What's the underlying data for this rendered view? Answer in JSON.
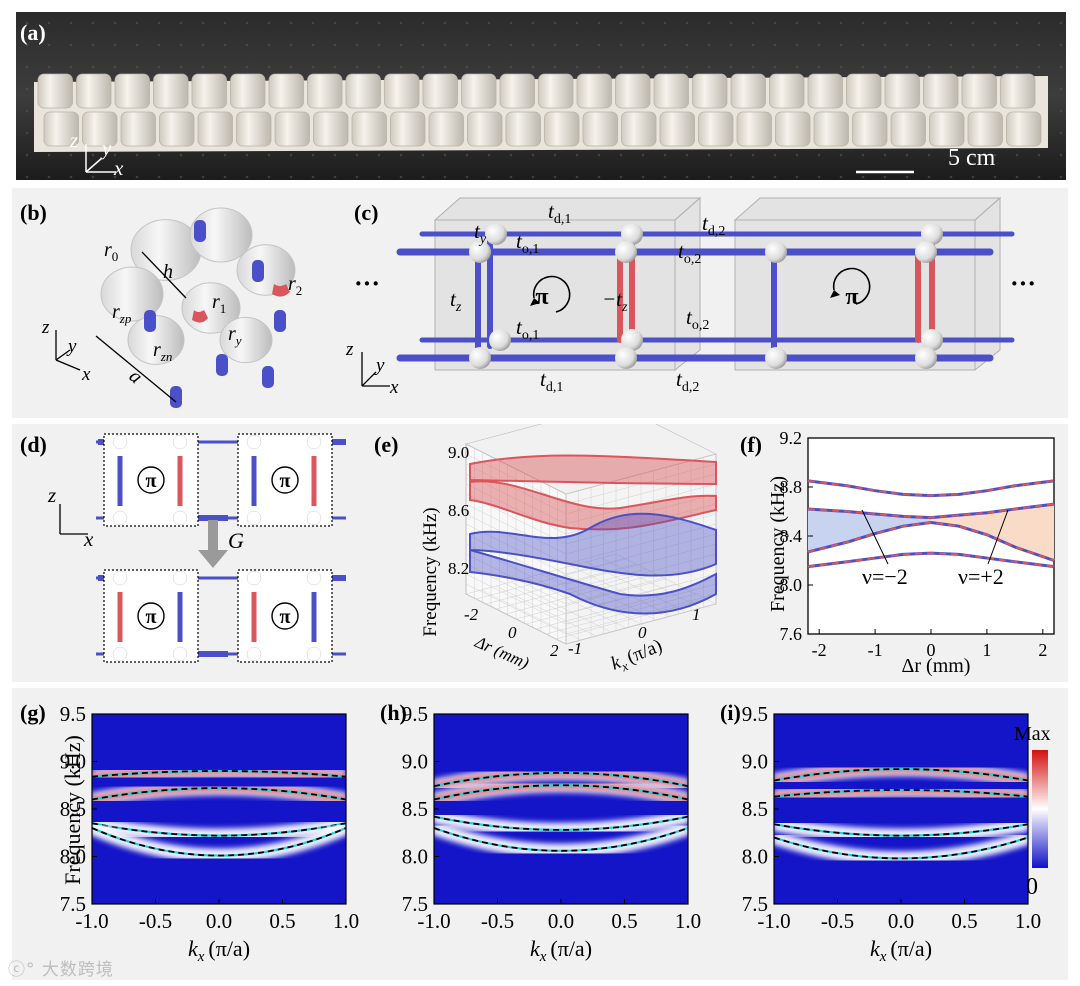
{
  "panels": {
    "a": "(a)",
    "b": "(b)",
    "c": "(c)",
    "d": "(d)",
    "e": "(e)",
    "f": "(f)",
    "g": "(g)",
    "h": "(h)",
    "i": "(i)"
  },
  "photo": {
    "scale_bar": "5 cm",
    "axes": [
      "z",
      "y",
      "x"
    ]
  },
  "unit_cell": {
    "labels": [
      "r",
      "0",
      "h",
      "r",
      "zp",
      "r",
      "1",
      "r",
      "2",
      "r",
      "zn",
      "r",
      "y",
      "a"
    ],
    "axes": [
      "z",
      "y",
      "x"
    ]
  },
  "lattice": {
    "hoppings": {
      "td1": "t",
      "td1_sub": "d,1",
      "td2": "t",
      "td2_sub": "d,2",
      "to1": "t",
      "to1_sub": "o,1",
      "to2": "t",
      "to2_sub": "o,2",
      "ty": "t",
      "ty_sub": "y",
      "tz": "t",
      "tz_sub": "z",
      "mtz": "−t",
      "mtz_sub": "z"
    },
    "flux": "π",
    "ellipsis": "···",
    "axes": [
      "z",
      "y",
      "x"
    ]
  },
  "gauge": {
    "flux": "π",
    "label": "G",
    "axes": [
      "z",
      "x"
    ]
  },
  "colors": {
    "blue": "#4b50c8",
    "red": "#d9565c",
    "cyan": "#22d0e0",
    "panel": "#f1f1f1"
  },
  "chart_data": [
    {
      "panel": "e",
      "type": "surface",
      "zlabel": "Frequency (kHz)",
      "zticks": [
        "9.0",
        "8.6",
        "8.2"
      ],
      "xlabel": "Δr (mm)",
      "xticks": [
        "-2",
        "0",
        "2"
      ],
      "ylabel": "k",
      "ylabel_sub": "x",
      "ylabel_unit": "(π/a)",
      "yticks": [
        "-1",
        "0",
        "1"
      ]
    },
    {
      "panel": "f",
      "type": "line",
      "ylabel": "Frequency (kHz)",
      "xlabel": "Δr (mm)",
      "xticks": [
        "-2",
        "-1",
        "0",
        "1",
        "2"
      ],
      "yticks": [
        "7.6",
        "8.0",
        "8.4",
        "8.8",
        "9.2"
      ],
      "xlim": [
        -2.2,
        2.2
      ],
      "ylim": [
        7.6,
        9.2
      ],
      "annotations": [
        "ν=−2",
        "ν=+2"
      ],
      "series": [
        {
          "x": [
            -2.2,
            -1.5,
            -1,
            -0.5,
            0,
            0.5,
            1,
            1.5,
            2.2
          ],
          "values": [
            8.85,
            8.81,
            8.77,
            8.74,
            8.73,
            8.74,
            8.77,
            8.81,
            8.85
          ]
        },
        {
          "x": [
            -2.2,
            -1.5,
            -1,
            -0.5,
            0,
            0.5,
            1,
            1.5,
            2.2
          ],
          "values": [
            8.62,
            8.6,
            8.58,
            8.56,
            8.55,
            8.57,
            8.59,
            8.62,
            8.66
          ]
        },
        {
          "x": [
            -2.2,
            -1.5,
            -1,
            -0.5,
            0,
            0.5,
            1,
            1.5,
            2.2
          ],
          "values": [
            8.27,
            8.35,
            8.42,
            8.48,
            8.51,
            8.48,
            8.41,
            8.31,
            8.2
          ]
        },
        {
          "x": [
            -2.2,
            -1.5,
            -1,
            -0.5,
            0,
            0.5,
            1,
            1.5,
            2.2
          ],
          "values": [
            8.15,
            8.19,
            8.22,
            8.25,
            8.26,
            8.25,
            8.22,
            8.19,
            8.15
          ]
        }
      ]
    },
    {
      "panel": "g",
      "type": "heatmap",
      "ylabel": "Frequency (kHz)",
      "xlabel": "k",
      "xlabel_sub": "x",
      "xlabel_unit": "(π/a)",
      "xticks": [
        "-1.0",
        "-0.5",
        "0.0",
        "0.5",
        "1.0"
      ],
      "yticks": [
        "7.5",
        "8.0",
        "8.5",
        "9.0",
        "9.5"
      ],
      "xlim": [
        -1,
        1
      ],
      "ylim": [
        7.5,
        9.5
      ],
      "bands": [
        {
          "edge": 8.84,
          "center": 8.9
        },
        {
          "edge": 8.6,
          "center": 8.72
        },
        {
          "edge": 8.35,
          "center": 8.22
        },
        {
          "edge": 8.3,
          "center": 8.01
        }
      ]
    },
    {
      "panel": "h",
      "type": "heatmap",
      "xlabel": "k",
      "xlabel_sub": "x",
      "xlabel_unit": "(π/a)",
      "xticks": [
        "-1.0",
        "-0.5",
        "0.0",
        "0.5",
        "1.0"
      ],
      "yticks": [
        "7.5",
        "8.0",
        "8.5",
        "9.0",
        "9.5"
      ],
      "xlim": [
        -1,
        1
      ],
      "ylim": [
        7.5,
        9.5
      ],
      "bands": [
        {
          "edge": 8.74,
          "center": 8.88
        },
        {
          "edge": 8.6,
          "center": 8.75
        },
        {
          "edge": 8.42,
          "center": 8.28
        },
        {
          "edge": 8.3,
          "center": 8.06
        }
      ]
    },
    {
      "panel": "i",
      "type": "heatmap",
      "xlabel": "k",
      "xlabel_sub": "x",
      "xlabel_unit": "(π/a)",
      "xticks": [
        "-1.0",
        "-0.5",
        "0.0",
        "0.5",
        "1.0"
      ],
      "yticks": [
        "7.5",
        "8.0",
        "8.5",
        "9.0",
        "9.5"
      ],
      "xlim": [
        -1,
        1
      ],
      "ylim": [
        7.5,
        9.5
      ],
      "colorbar": [
        "Max",
        "0"
      ],
      "bands": [
        {
          "edge": 8.8,
          "center": 8.92
        },
        {
          "edge": 8.63,
          "center": 8.7
        },
        {
          "edge": 8.34,
          "center": 8.22
        },
        {
          "edge": 8.2,
          "center": 7.98
        }
      ]
    }
  ],
  "watermark": "大数跨境"
}
